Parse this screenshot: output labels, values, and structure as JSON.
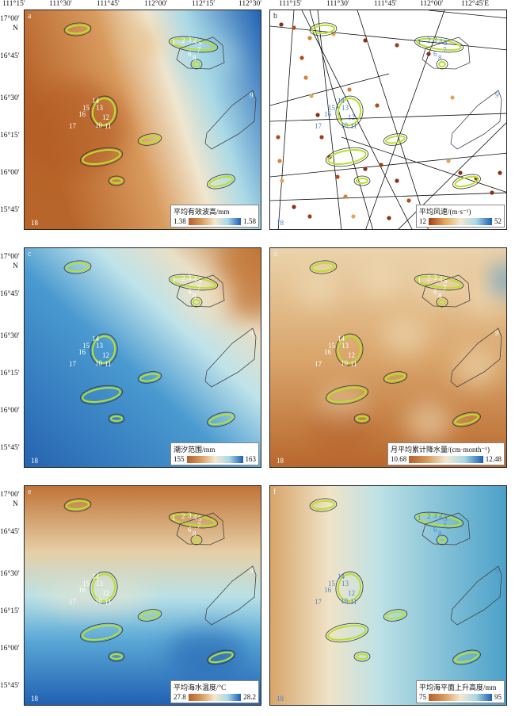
{
  "x_ticks": [
    "111°15′",
    "111°30′",
    "111°45′",
    "112°00′",
    "112°15′",
    "112°30′",
    "112°45′E"
  ],
  "y_ticks": [
    "17°00′",
    "16°45′",
    "16°30′",
    "16°15′",
    "16°00′",
    "15°45′"
  ],
  "north_label": "N",
  "panels": [
    {
      "id": "a",
      "legend_title": "平均有效波高/mm",
      "min": "1.38",
      "max": "1.58"
    },
    {
      "id": "b",
      "legend_title": "平均风速/(m·s⁻¹)",
      "min": "12",
      "max": "52"
    },
    {
      "id": "c",
      "legend_title": "潮汐范围/mm",
      "min": "155",
      "max": "163"
    },
    {
      "id": "d",
      "legend_title": "月平均累计降水量/(cm·month⁻¹)",
      "min": "10.68",
      "max": "12.48"
    },
    {
      "id": "e",
      "legend_title": "平均海水温度/°C",
      "min": "27.8",
      "max": "28.2"
    },
    {
      "id": "f",
      "legend_title": "平均海平面上升高度/mm",
      "min": "75",
      "max": "95"
    }
  ],
  "site_labels": [
    "1",
    "2",
    "3",
    "4",
    "5",
    "6",
    "7",
    "8",
    "9",
    "10",
    "11",
    "12",
    "13",
    "14",
    "15",
    "16",
    "17",
    "18"
  ],
  "colors": {
    "orange": "#c5702f",
    "cream": "#f3e8d0",
    "lightblue": "#a9d8e6",
    "blue": "#1b5fb3",
    "reef": "#b6e12b"
  }
}
